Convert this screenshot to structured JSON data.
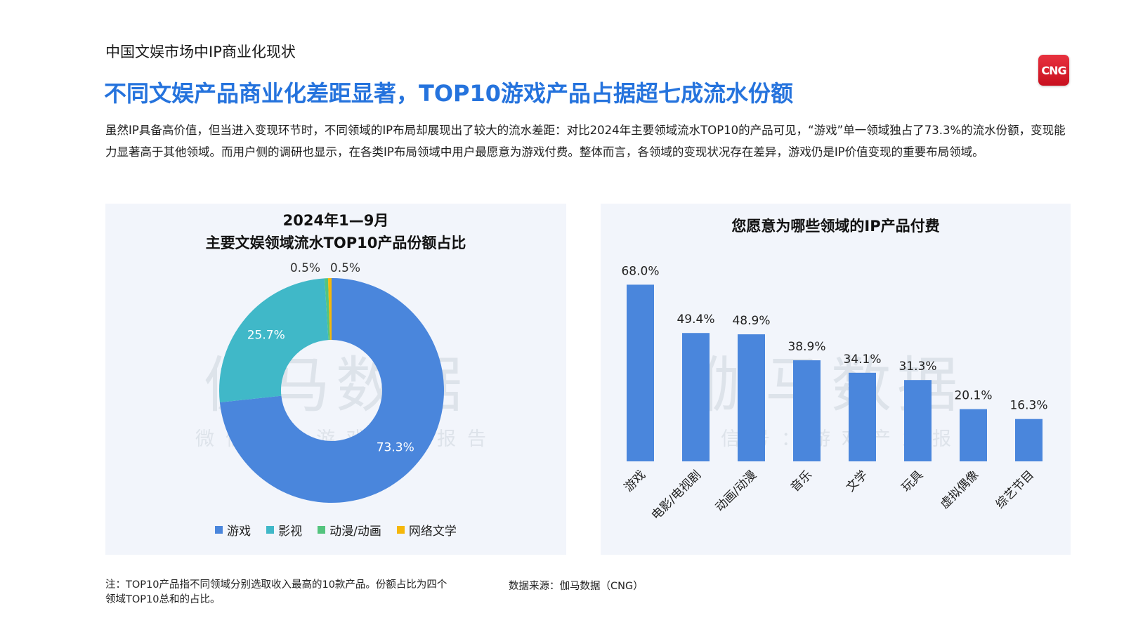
{
  "page": {
    "section_label": "中国文娱市场中IP商业化现状",
    "headline": "不同文娱产品商业化差距显著，TOP10游戏产品占据超七成流水份额",
    "intro": "虽然IP具备高价值，但当进入变现环节时，不同领域的IP布局却展现出了较大的流水差距：对比2024年主要领域流水TOP10的产品可见，“游戏”单一领域独占了73.3%的流水份额，变现能力显著高于其他领域。而用户侧的调研也显示，在各类IP布局领域中用户最愿意为游戏付费。整体而言，各领域的变现状况存在差异，游戏仍是IP价值变现的重要布局领域。",
    "logo_text": "CNG",
    "footnote": "注：TOP10产品指不同领域分别选取收入最高的10款产品。份额占比为四个领域TOP10总和的占比。",
    "source": "数据来源：伽马数据（CNG）"
  },
  "watermark": {
    "main": "伽马数据",
    "sub": "微信号：游戏产业报告"
  },
  "colors": {
    "accent": "#2573dd",
    "bar": "#4a86dc",
    "panel_bg": "#f2f5fb"
  },
  "chart_data": [
    {
      "type": "pie",
      "variant": "donut",
      "title_line1": "2024年1—9月",
      "title_line2": "主要文娱领域流水TOP10产品份额占比",
      "categories": [
        "游戏",
        "影视",
        "动漫/动画",
        "网络文学"
      ],
      "values": [
        73.3,
        25.7,
        0.5,
        0.5
      ],
      "labels": [
        "73.3%",
        "25.7%",
        "0.5%",
        "0.5%"
      ],
      "colors": [
        "#4a86dc",
        "#40b8c8",
        "#54c47e",
        "#f5b70a"
      ],
      "legend_position": "bottom"
    },
    {
      "type": "bar",
      "title": "您愿意为哪些领域的IP产品付费",
      "categories": [
        "游戏",
        "电影/电视剧",
        "动画/动漫",
        "音乐",
        "文学",
        "玩具",
        "虚拟偶像",
        "综艺节目"
      ],
      "values": [
        68.0,
        49.4,
        48.9,
        38.9,
        34.1,
        31.3,
        20.1,
        16.3
      ],
      "labels": [
        "68.0%",
        "49.4%",
        "48.9%",
        "38.9%",
        "34.1%",
        "31.3%",
        "20.1%",
        "16.3%"
      ],
      "ylim": [
        0,
        70
      ],
      "grid": false,
      "color": "#4a86dc"
    }
  ]
}
